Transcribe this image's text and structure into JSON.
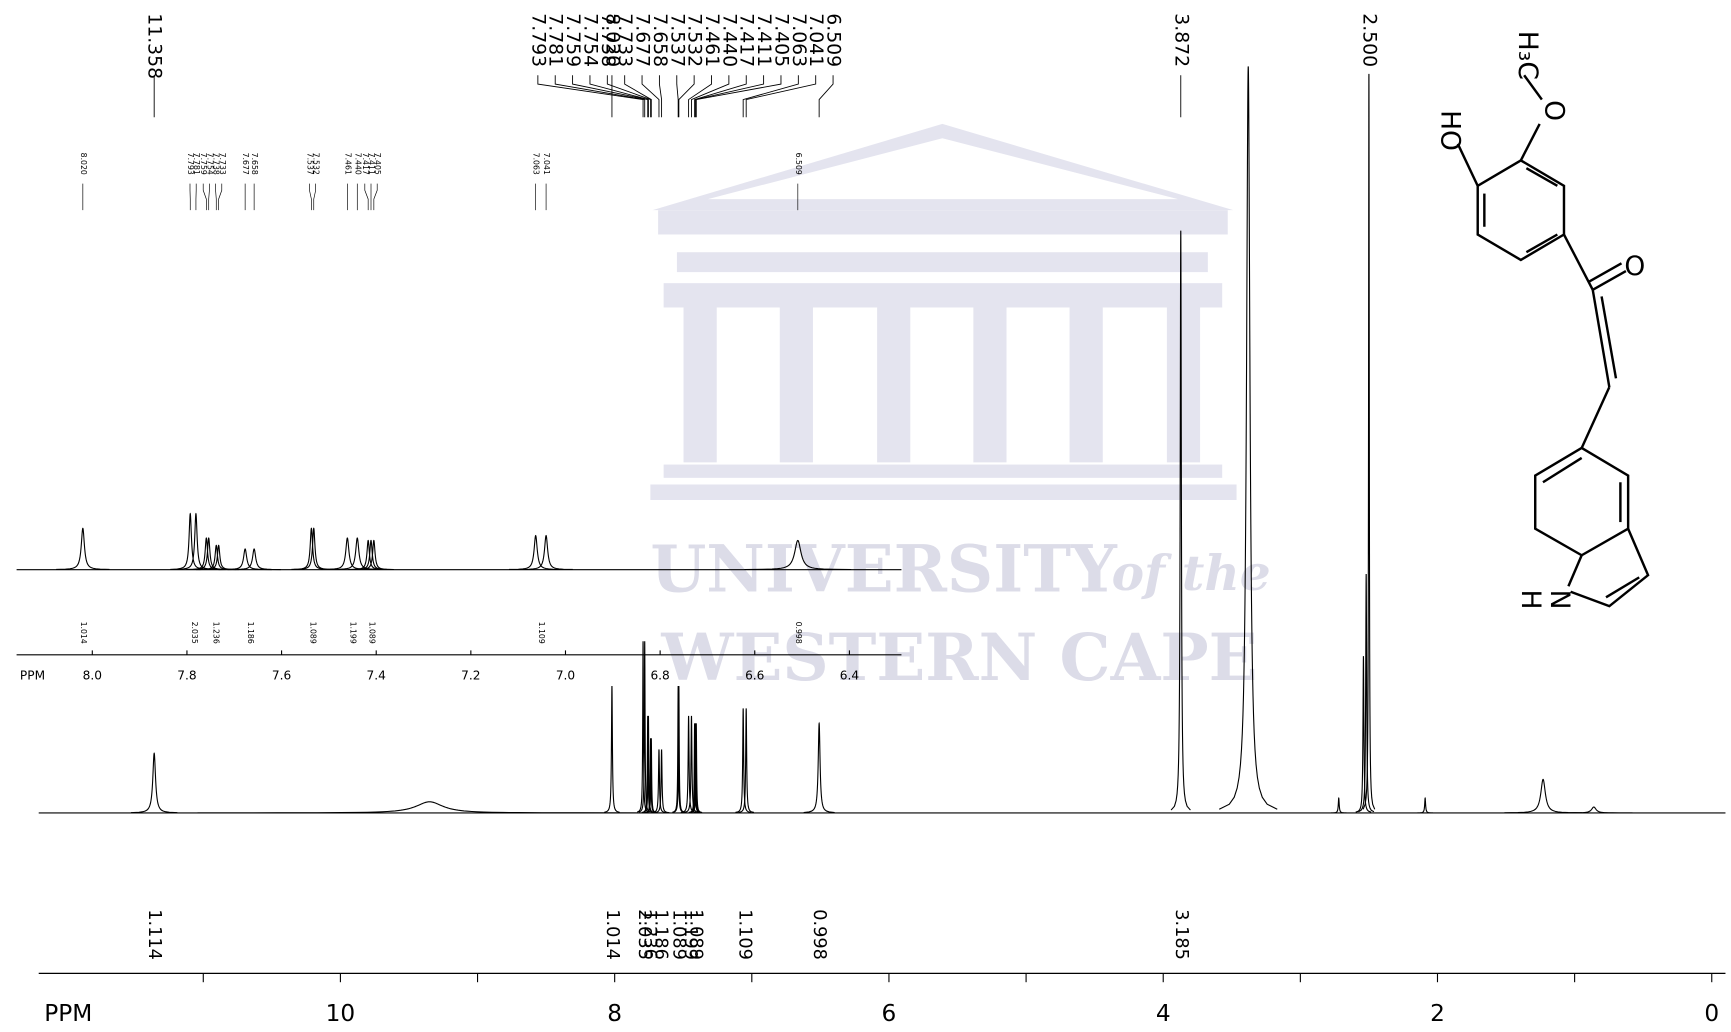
{
  "chart_data": {
    "type": "nmr",
    "xlabel": "PPM",
    "xlim": [
      12.2,
      -0.1
    ],
    "xticks": [
      10,
      8,
      6,
      4,
      2,
      0
    ],
    "xminorticks": [
      11,
      9,
      7,
      5,
      3,
      1
    ],
    "ylim": [
      0,
      100
    ],
    "color": "#000000",
    "peaks": [
      {
        "ppm": 11.358,
        "label": "11.358",
        "height": 8,
        "width": 0.012
      },
      {
        "ppm": 9.35,
        "height": 1.5,
        "width": 0.12
      },
      {
        "ppm": 8.02,
        "label": "8.020",
        "height": 17,
        "width": 0.004
      },
      {
        "ppm": 7.793,
        "label": "7.793",
        "height": 23,
        "width": 0.003
      },
      {
        "ppm": 7.781,
        "label": "7.781",
        "height": 23,
        "width": 0.003
      },
      {
        "ppm": 7.759,
        "label": "7.759",
        "height": 13,
        "width": 0.003
      },
      {
        "ppm": 7.754,
        "label": "7.754",
        "height": 13,
        "width": 0.003
      },
      {
        "ppm": 7.738,
        "label": "7.738",
        "height": 10,
        "width": 0.003
      },
      {
        "ppm": 7.733,
        "label": "7.733",
        "height": 10,
        "width": 0.003
      },
      {
        "ppm": 7.677,
        "label": "7.677",
        "height": 8.5,
        "width": 0.004
      },
      {
        "ppm": 7.658,
        "label": "7.658",
        "height": 8.5,
        "width": 0.004
      },
      {
        "ppm": 7.537,
        "label": "7.537",
        "height": 17,
        "width": 0.003
      },
      {
        "ppm": 7.532,
        "label": "7.532",
        "height": 17,
        "width": 0.003
      },
      {
        "ppm": 7.461,
        "label": "7.461",
        "height": 13,
        "width": 0.004
      },
      {
        "ppm": 7.44,
        "label": "7.440",
        "height": 13,
        "width": 0.004
      },
      {
        "ppm": 7.417,
        "label": "7.417",
        "height": 12,
        "width": 0.003
      },
      {
        "ppm": 7.411,
        "label": "7.411",
        "height": 12,
        "width": 0.003
      },
      {
        "ppm": 7.405,
        "label": "7.405",
        "height": 12,
        "width": 0.003
      },
      {
        "ppm": 7.063,
        "label": "7.063",
        "height": 14,
        "width": 0.004
      },
      {
        "ppm": 7.041,
        "label": "7.041",
        "height": 14,
        "width": 0.004
      },
      {
        "ppm": 6.509,
        "label": "6.509",
        "height": 12,
        "width": 0.008
      },
      {
        "ppm": 3.872,
        "label": "3.872",
        "height": 78,
        "width": 0.005
      },
      {
        "ppm": 3.38,
        "height": 100,
        "width": 0.015
      },
      {
        "ppm": 2.54,
        "height": 21,
        "width": 0.004
      },
      {
        "ppm": 2.52,
        "height": 32,
        "width": 0.004
      },
      {
        "ppm": 2.5,
        "label": "2.500",
        "height": 99,
        "width": 0.003
      },
      {
        "ppm": 2.72,
        "height": 2,
        "width": 0.004
      },
      {
        "ppm": 2.09,
        "height": 2,
        "width": 0.004
      },
      {
        "ppm": 1.23,
        "height": 4.5,
        "width": 0.02
      },
      {
        "ppm": 0.86,
        "height": 0.8,
        "width": 0.02
      }
    ],
    "integrals": [
      {
        "ppm": 11.358,
        "value": 1.114
      },
      {
        "ppm": 8.02,
        "value": 1.014
      },
      {
        "ppm": 7.787,
        "value": 2.035
      },
      {
        "ppm": 7.745,
        "value": 1.236
      },
      {
        "ppm": 7.667,
        "value": 1.186
      },
      {
        "ppm": 7.535,
        "value": 1.089
      },
      {
        "ppm": 7.45,
        "value": 1.199
      },
      {
        "ppm": 7.411,
        "value": 1.089
      },
      {
        "ppm": 7.052,
        "value": 1.109
      },
      {
        "ppm": 6.509,
        "value": 0.998
      },
      {
        "ppm": 3.872,
        "value": 3.185
      }
    ],
    "inset": {
      "xlabel": "PPM",
      "xlim": [
        8.16,
        6.29
      ],
      "xticks": [
        {
          "value": 8,
          "label": "8.0"
        },
        7.8,
        7.6,
        7.4,
        7.2,
        {
          "value": 7,
          "label": "7.0"
        },
        6.8,
        6.6,
        6.4
      ],
      "ylim": [
        0,
        40
      ],
      "integrals": [
        {
          "ppm": 8.02,
          "value": 1.014
        },
        {
          "ppm": 7.785,
          "value": 2.035
        },
        {
          "ppm": 7.74,
          "value": 1.236
        },
        {
          "ppm": 7.667,
          "value": 1.186
        },
        {
          "ppm": 7.535,
          "value": 1.089
        },
        {
          "ppm": 7.45,
          "value": 1.199
        },
        {
          "ppm": 7.41,
          "value": 1.089
        },
        {
          "ppm": 7.052,
          "value": 1.109
        },
        {
          "ppm": 6.509,
          "value": 0.998
        }
      ]
    }
  },
  "structure": {
    "atoms": [
      "H₃C",
      "O",
      "HO",
      "O",
      "N",
      "H"
    ]
  },
  "watermark": {
    "lines": [
      "UNIVERSITY",
      "of the",
      "WESTERN CAPE"
    ]
  }
}
